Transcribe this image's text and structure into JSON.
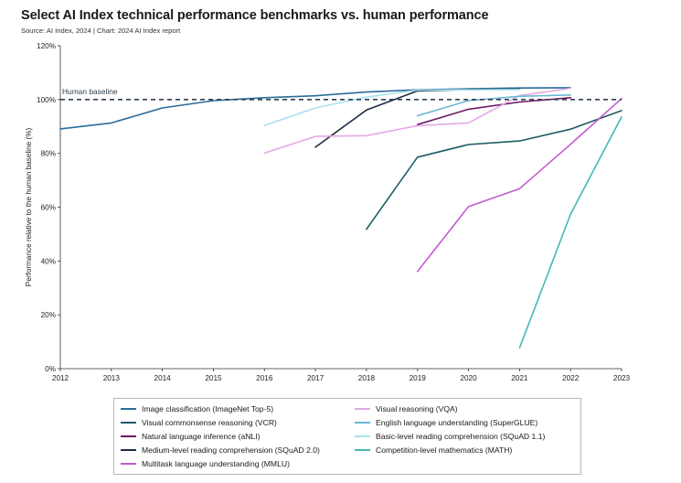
{
  "title": "Select AI Index technical performance benchmarks vs. human performance",
  "source": "Source: AI Index, 2024 | Chart: 2024 AI Index report",
  "chart_data": {
    "type": "line",
    "title": "Select AI Index technical performance benchmarks vs. human performance",
    "xlabel": "",
    "ylabel": "Performance relative to the human baseline (%)",
    "x_ticks": [
      "2012",
      "2013",
      "2014",
      "2015",
      "2016",
      "2017",
      "2018",
      "2019",
      "2020",
      "2021",
      "2022",
      "2023"
    ],
    "y_ticks": [
      "0%",
      "20%",
      "40%",
      "60%",
      "80%",
      "100%",
      "120%"
    ],
    "xlim": [
      2012,
      2023
    ],
    "ylim": [
      0,
      120
    ],
    "grid": false,
    "baseline": {
      "label": "Human baseline",
      "value": 100
    },
    "series": [
      {
        "name": "Image classification (ImageNet Top-5)",
        "color": "#2b6c9a",
        "x": [
          2012,
          2013,
          2014,
          2015,
          2016,
          2017,
          2018,
          2019,
          2020,
          2021,
          2022
        ],
        "y": [
          89.1,
          91.3,
          96.9,
          99.6,
          100.7,
          101.4,
          102.8,
          103.6,
          104.0,
          104.3,
          104.4
        ]
      },
      {
        "name": "Visual commonsense reasoning (VCR)",
        "color": "#1c5c63",
        "x": [
          2018,
          2019,
          2020,
          2021,
          2022,
          2023
        ],
        "y": [
          51.8,
          78.6,
          83.3,
          84.6,
          89.0,
          95.9
        ]
      },
      {
        "name": "Natural language inference (aNLI)",
        "color": "#6e1a63",
        "x": [
          2019,
          2020,
          2021,
          2022
        ],
        "y": [
          90.7,
          96.4,
          99.1,
          100.7
        ]
      },
      {
        "name": "Medium-level reading comprehension (SQuAD 2.0)",
        "color": "#1c2e44",
        "x": [
          2017,
          2018,
          2019,
          2020,
          2021
        ],
        "y": [
          82.3,
          96.1,
          103.2,
          103.7,
          103.9
        ]
      },
      {
        "name": "Multitask language understanding (MMLU)",
        "color": "#c25bd0",
        "x": [
          2019,
          2020,
          2021,
          2022,
          2023
        ],
        "y": [
          36.1,
          60.2,
          66.9,
          83.4,
          100.4
        ]
      },
      {
        "name": "Visual reasoning (VQA)",
        "color": "#e4a8e6",
        "x": [
          2016,
          2017,
          2018,
          2019,
          2020,
          2021,
          2022
        ],
        "y": [
          80.1,
          86.3,
          86.6,
          90.3,
          91.3,
          101.5,
          104.2
        ]
      },
      {
        "name": "English language understanding (SuperGLUE)",
        "color": "#6ab7d5",
        "x": [
          2019,
          2020,
          2021,
          2022
        ],
        "y": [
          94.0,
          99.6,
          101.2,
          101.7
        ]
      },
      {
        "name": "Basic-level reading comprehension (SQuAD 1.1)",
        "color": "#a8e2ee",
        "x": [
          2016,
          2017,
          2018,
          2019,
          2020,
          2021
        ],
        "y": [
          90.4,
          96.9,
          100.9,
          103.5,
          103.6,
          103.7
        ]
      },
      {
        "name": "Competition-level mathematics (MATH)",
        "color": "#45b8b8",
        "x": [
          2021,
          2022,
          2023
        ],
        "y": [
          7.7,
          57.4,
          93.6
        ]
      }
    ]
  }
}
